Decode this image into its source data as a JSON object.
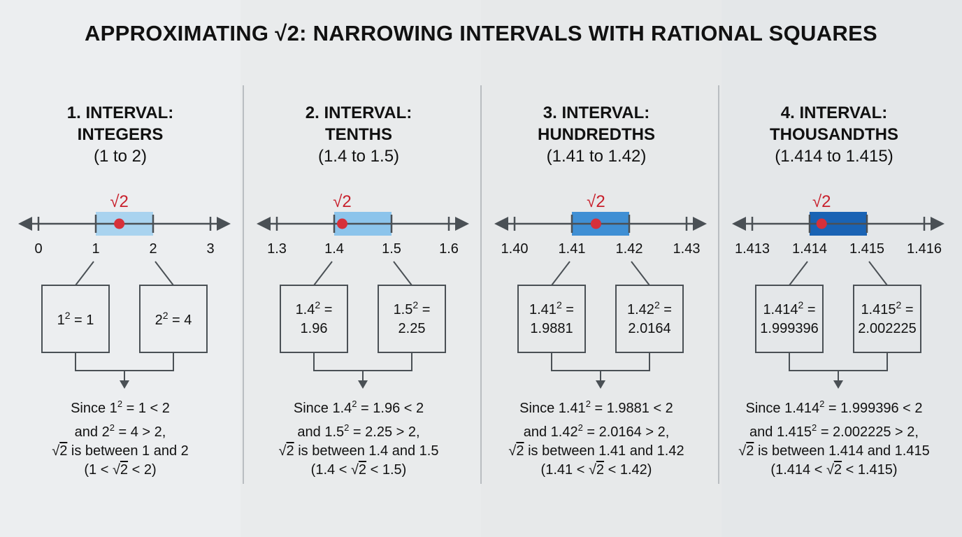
{
  "title": "APPROXIMATING √2: NARROWING INTERVALS WITH RATIONAL SQUARES",
  "root_label": "√2",
  "colors": {
    "axis": "#4a5055",
    "box_border": "#4a5055",
    "point": "#d7303a",
    "root_label": "#c8202c"
  },
  "panels": [
    {
      "heading_line1": "1. INTERVAL:",
      "heading_line2": "INTEGERS",
      "heading_line3": "(1 to 2)",
      "ticks": [
        "0",
        "1",
        "2",
        "3"
      ],
      "highlight_color": "#a9d3ef",
      "root_fraction_in_interval": 0.41,
      "lower_square": [
        "1² = 1"
      ],
      "upper_square": [
        "2² = 4"
      ],
      "conclusion": [
        "Since 1² = 1 < 2",
        "and 2² = 4 > 2,",
        "√2 is between 1 and 2",
        "(1 < √2 < 2)"
      ]
    },
    {
      "heading_line1": "2. INTERVAL:",
      "heading_line2": "TENTHS",
      "heading_line3": "(1.4 to 1.5)",
      "ticks": [
        "1.3",
        "1.4",
        "1.5",
        "1.6"
      ],
      "highlight_color": "#8cc4eb",
      "root_fraction_in_interval": 0.14,
      "lower_square": [
        "1.4² =",
        "1.96"
      ],
      "upper_square": [
        "1.5² =",
        "2.25"
      ],
      "conclusion": [
        "Since 1.4² = 1.96 < 2",
        "and 1.5² = 2.25 > 2,",
        "√2 is between 1.4 and 1.5",
        "(1.4 < √2 < 1.5)"
      ]
    },
    {
      "heading_line1": "3. INTERVAL:",
      "heading_line2": "HUNDREDTHS",
      "heading_line3": "(1.41 to 1.42)",
      "ticks": [
        "1.40",
        "1.41",
        "1.42",
        "1.43"
      ],
      "highlight_color": "#3f8fd4",
      "root_fraction_in_interval": 0.42,
      "lower_square": [
        "1.41² =",
        "1.9881"
      ],
      "upper_square": [
        "1.42² =",
        "2.0164"
      ],
      "conclusion": [
        "Since 1.41² = 1.9881 < 2",
        "and 1.42² = 2.0164 > 2,",
        "√2 is between 1.41 and 1.42",
        "(1.41 < √2 < 1.42)"
      ]
    },
    {
      "heading_line1": "4. INTERVAL:",
      "heading_line2": "THOUSANDTHS",
      "heading_line3": "(1.414 to 1.415)",
      "ticks": [
        "1.413",
        "1.414",
        "1.415",
        "1.416"
      ],
      "highlight_color": "#1a63b4",
      "root_fraction_in_interval": 0.21,
      "lower_square": [
        "1.414² =",
        "1.999396"
      ],
      "upper_square": [
        "1.415² =",
        "2.002225"
      ],
      "conclusion": [
        "Since 1.414² = 1.999396 < 2",
        "and 1.415² = 2.002225 > 2,",
        "√2 is between 1.414 and 1.415",
        "(1.414 < √2 < 1.415)"
      ]
    }
  ]
}
